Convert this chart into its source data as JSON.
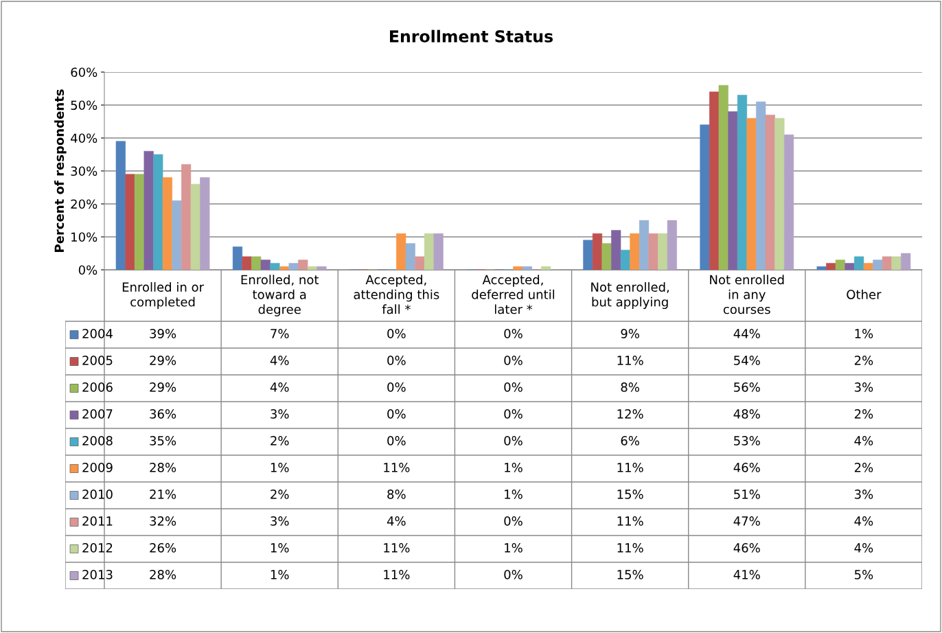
{
  "chart_data": {
    "type": "bar",
    "title": "Enrollment Status",
    "ylabel": "Percent of respondents",
    "categories": [
      "Enrolled in or\ncompleted",
      "Enrolled, not\ntoward a\ndegree",
      "Accepted,\nattending this\nfall *",
      "Accepted,\ndeferred until\nlater *",
      "Not enrolled,\nbut applying",
      "Not enrolled\nin any\ncourses",
      "Other"
    ],
    "series": [
      {
        "name": "2004",
        "color": "#4f81bd",
        "values": [
          39,
          7,
          0,
          0,
          9,
          44,
          1
        ],
        "value_labels": [
          "39%",
          "7%",
          "0%",
          "0%",
          "9%",
          "44%",
          "1%"
        ]
      },
      {
        "name": "2005",
        "color": "#c0504d",
        "values": [
          29,
          4,
          0,
          0,
          11,
          54,
          2
        ],
        "value_labels": [
          "29%",
          "4%",
          "0%",
          "0%",
          "11%",
          "54%",
          "2%"
        ]
      },
      {
        "name": "2006",
        "color": "#9bbb59",
        "values": [
          29,
          4,
          0,
          0,
          8,
          56,
          3
        ],
        "value_labels": [
          "29%",
          "4%",
          "0%",
          "0%",
          "8%",
          "56%",
          "3%"
        ]
      },
      {
        "name": "2007",
        "color": "#8064a2",
        "values": [
          36,
          3,
          0,
          0,
          12,
          48,
          2
        ],
        "value_labels": [
          "36%",
          "3%",
          "0%",
          "0%",
          "12%",
          "48%",
          "2%"
        ]
      },
      {
        "name": "2008",
        "color": "#4bacc6",
        "values": [
          35,
          2,
          0,
          0,
          6,
          53,
          4
        ],
        "value_labels": [
          "35%",
          "2%",
          "0%",
          "0%",
          "6%",
          "53%",
          "4%"
        ]
      },
      {
        "name": "2009",
        "color": "#f79646",
        "values": [
          28,
          1,
          11,
          1,
          11,
          46,
          2
        ],
        "value_labels": [
          "28%",
          "1%",
          "11%",
          "1%",
          "11%",
          "46%",
          "2%"
        ]
      },
      {
        "name": "2010",
        "color": "#95b3d7",
        "values": [
          21,
          2,
          8,
          1,
          15,
          51,
          3
        ],
        "value_labels": [
          "21%",
          "2%",
          "8%",
          "1%",
          "15%",
          "51%",
          "3%"
        ]
      },
      {
        "name": "2011",
        "color": "#d99694",
        "values": [
          32,
          3,
          4,
          0,
          11,
          47,
          4
        ],
        "value_labels": [
          "32%",
          "3%",
          "4%",
          "0%",
          "11%",
          "47%",
          "4%"
        ]
      },
      {
        "name": "2012",
        "color": "#c3d69b",
        "values": [
          26,
          1,
          11,
          1,
          11,
          46,
          4
        ],
        "value_labels": [
          "26%",
          "1%",
          "11%",
          "1%",
          "11%",
          "46%",
          "4%"
        ]
      },
      {
        "name": "2013",
        "color": "#b3a2c7",
        "values": [
          28,
          1,
          11,
          0,
          15,
          41,
          5
        ],
        "value_labels": [
          "28%",
          "1%",
          "11%",
          "0%",
          "15%",
          "41%",
          "5%"
        ]
      }
    ],
    "ylim": [
      0,
      60
    ],
    "yticks": [
      {
        "value": 0,
        "label": "0%"
      },
      {
        "value": 10,
        "label": "10%"
      },
      {
        "value": 20,
        "label": "20%"
      },
      {
        "value": 30,
        "label": "30%"
      },
      {
        "value": 40,
        "label": "40%"
      },
      {
        "value": 50,
        "label": "50%"
      },
      {
        "value": 60,
        "label": "60%"
      }
    ],
    "grid": "y",
    "legend": "bottom left"
  }
}
